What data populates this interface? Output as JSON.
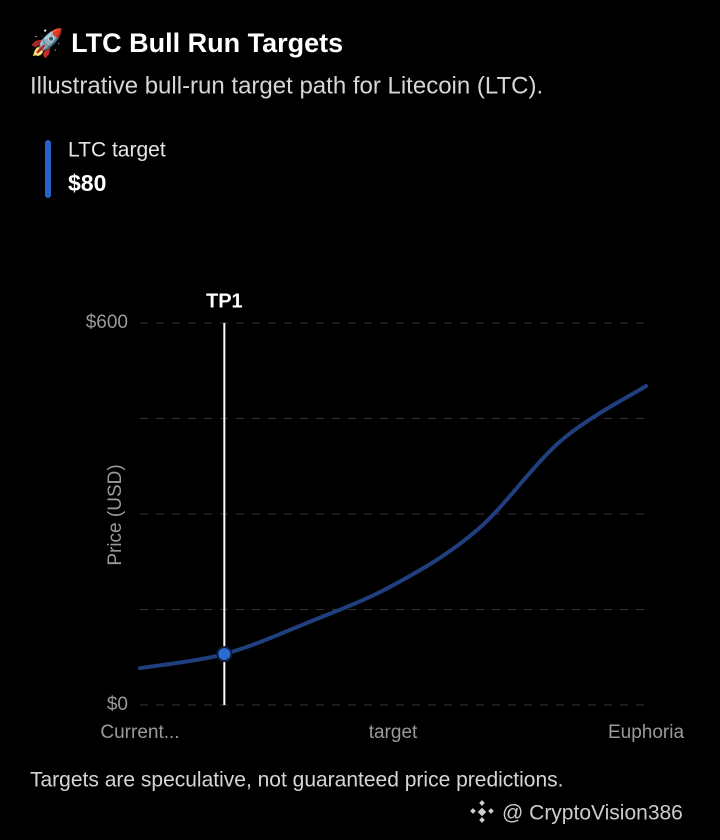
{
  "chart_data": {
    "type": "line",
    "title": "🚀 LTC Bull Run Targets",
    "subtitle": "Illustrative bull-run target path for Litecoin (LTC).",
    "y_label": "Price (USD)",
    "categories": [
      "Current...",
      null,
      null,
      "target",
      null,
      null,
      "Euphoria"
    ],
    "series": [
      {
        "name": "LTC target",
        "color": "#1f3f7e",
        "legend_color": "#2563c8",
        "values": [
          58,
          80,
          130,
          188,
          275,
          416,
          501
        ],
        "value_labels": [
          null,
          "$80",
          null,
          null,
          null,
          null,
          null
        ]
      }
    ],
    "marker": {
      "index": 1,
      "label": "TP1",
      "color": "#2a6bd1"
    },
    "ylim": [
      0,
      600
    ],
    "yticks": [
      {
        "value": 0,
        "label": "$0"
      },
      {
        "value": 600,
        "label": "$600"
      }
    ],
    "gridlines": [
      150,
      300,
      450
    ],
    "grid": true,
    "footnote": "Targets are speculative, not guaranteed price predictions.",
    "watermark": "@ CryptoVision386"
  }
}
